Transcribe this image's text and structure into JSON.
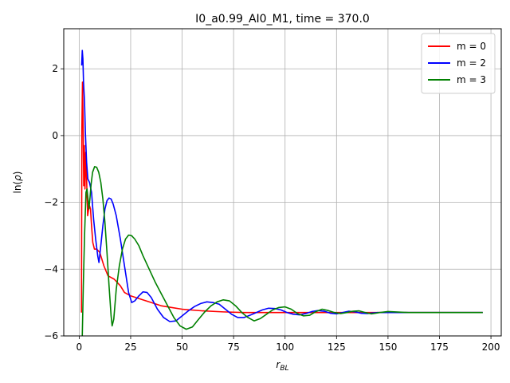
{
  "chart_data": {
    "type": "line",
    "title": "I0_a0.99_AI0_M1, time = 370.0",
    "xlabel": "r_BL",
    "ylabel": "ln(ρ)",
    "xlim": [
      -7.5,
      205
    ],
    "ylim": [
      -6,
      3.2
    ],
    "xticks": [
      0,
      25,
      50,
      75,
      100,
      125,
      150,
      175,
      200
    ],
    "yticks": [
      -6,
      -4,
      -2,
      0,
      2
    ],
    "grid": true,
    "legend_position": "top-right",
    "series": [
      {
        "name": "m = 0",
        "color": "#ff0000",
        "points": [
          [
            1.1,
            -5.3
          ],
          [
            1.3,
            0.2
          ],
          [
            1.6,
            1.6
          ],
          [
            1.9,
            0.4
          ],
          [
            2.2,
            -1.5
          ],
          [
            2.5,
            -0.3
          ],
          [
            2.8,
            -1.6
          ],
          [
            3.2,
            -0.5
          ],
          [
            3.6,
            -1.3
          ],
          [
            4.1,
            -2.4
          ],
          [
            4.6,
            -2.2
          ],
          [
            5.0,
            -2.1
          ],
          [
            5.5,
            -2.2
          ],
          [
            6.0,
            -2.7
          ],
          [
            6.6,
            -3.2
          ],
          [
            7.4,
            -3.4
          ],
          [
            8.5,
            -3.4
          ],
          [
            10,
            -3.5
          ],
          [
            12,
            -3.9
          ],
          [
            14,
            -4.2
          ],
          [
            17,
            -4.3
          ],
          [
            20,
            -4.5
          ],
          [
            22,
            -4.7
          ],
          [
            25,
            -4.8
          ],
          [
            30,
            -4.9
          ],
          [
            35,
            -5.0
          ],
          [
            40,
            -5.1
          ],
          [
            45,
            -5.15
          ],
          [
            50,
            -5.2
          ],
          [
            60,
            -5.25
          ],
          [
            70,
            -5.28
          ],
          [
            80,
            -5.3
          ],
          [
            100,
            -5.3
          ],
          [
            125,
            -5.3
          ],
          [
            150,
            -5.3
          ],
          [
            175,
            -5.3
          ],
          [
            196,
            -5.3
          ]
        ]
      },
      {
        "name": "m = 2",
        "color": "#0000ff",
        "points": [
          [
            1.2,
            2.1
          ],
          [
            1.5,
            2.55
          ],
          [
            1.8,
            2.3
          ],
          [
            2.1,
            1.6
          ],
          [
            2.6,
            1.0
          ],
          [
            3.0,
            0.1
          ],
          [
            3.6,
            -0.8
          ],
          [
            4.2,
            -1.3
          ],
          [
            5.0,
            -1.4
          ],
          [
            6.0,
            -1.7
          ],
          [
            7.0,
            -2.5
          ],
          [
            8.0,
            -3.1
          ],
          [
            9.0,
            -3.6
          ],
          [
            9.6,
            -3.8
          ],
          [
            10.5,
            -3.3
          ],
          [
            11.5,
            -2.7
          ],
          [
            12.5,
            -2.2
          ],
          [
            13.5,
            -1.95
          ],
          [
            14.5,
            -1.87
          ],
          [
            15.5,
            -1.9
          ],
          [
            16.5,
            -2.05
          ],
          [
            18,
            -2.4
          ],
          [
            20,
            -3.1
          ],
          [
            22,
            -3.9
          ],
          [
            24,
            -4.7
          ],
          [
            25.5,
            -5.0
          ],
          [
            27,
            -4.95
          ],
          [
            29,
            -4.8
          ],
          [
            31,
            -4.68
          ],
          [
            33,
            -4.7
          ],
          [
            35,
            -4.85
          ],
          [
            38,
            -5.2
          ],
          [
            41,
            -5.45
          ],
          [
            44,
            -5.57
          ],
          [
            47,
            -5.55
          ],
          [
            50,
            -5.4
          ],
          [
            53,
            -5.25
          ],
          [
            56,
            -5.12
          ],
          [
            59,
            -5.03
          ],
          [
            62,
            -4.98
          ],
          [
            65,
            -5.0
          ],
          [
            68,
            -5.05
          ],
          [
            71,
            -5.2
          ],
          [
            74,
            -5.35
          ],
          [
            77,
            -5.45
          ],
          [
            80,
            -5.45
          ],
          [
            83,
            -5.38
          ],
          [
            86,
            -5.3
          ],
          [
            89,
            -5.22
          ],
          [
            92,
            -5.17
          ],
          [
            95,
            -5.18
          ],
          [
            98,
            -5.22
          ],
          [
            101,
            -5.3
          ],
          [
            104,
            -5.35
          ],
          [
            107,
            -5.37
          ],
          [
            110,
            -5.33
          ],
          [
            113,
            -5.27
          ],
          [
            116,
            -5.24
          ],
          [
            119,
            -5.26
          ],
          [
            122,
            -5.32
          ],
          [
            125,
            -5.34
          ],
          [
            128,
            -5.3
          ],
          [
            131,
            -5.26
          ],
          [
            134,
            -5.28
          ],
          [
            137,
            -5.32
          ],
          [
            140,
            -5.33
          ],
          [
            145,
            -5.3
          ],
          [
            150,
            -5.3
          ],
          [
            175,
            -5.3
          ],
          [
            196,
            -5.3
          ]
        ]
      },
      {
        "name": "m = 3",
        "color": "#008000",
        "points": [
          [
            1.5,
            -6.0
          ],
          [
            2.0,
            -4.5
          ],
          [
            2.6,
            -3.0
          ],
          [
            3.3,
            -1.7
          ],
          [
            3.8,
            -1.6
          ],
          [
            4.3,
            -1.9
          ],
          [
            4.7,
            -2.2
          ],
          [
            5.2,
            -1.9
          ],
          [
            5.8,
            -1.45
          ],
          [
            6.5,
            -1.1
          ],
          [
            7.5,
            -0.93
          ],
          [
            8.5,
            -0.95
          ],
          [
            9.5,
            -1.1
          ],
          [
            10.5,
            -1.4
          ],
          [
            11.5,
            -1.9
          ],
          [
            12.5,
            -2.6
          ],
          [
            13.5,
            -3.5
          ],
          [
            14.5,
            -4.5
          ],
          [
            15.5,
            -5.4
          ],
          [
            16.0,
            -5.7
          ],
          [
            16.8,
            -5.5
          ],
          [
            18,
            -4.6
          ],
          [
            19.5,
            -3.9
          ],
          [
            21,
            -3.4
          ],
          [
            22.5,
            -3.1
          ],
          [
            24,
            -2.98
          ],
          [
            25.5,
            -3.0
          ],
          [
            27,
            -3.1
          ],
          [
            29,
            -3.3
          ],
          [
            31,
            -3.6
          ],
          [
            34,
            -4.0
          ],
          [
            37,
            -4.4
          ],
          [
            40,
            -4.75
          ],
          [
            43,
            -5.1
          ],
          [
            46,
            -5.45
          ],
          [
            49,
            -5.7
          ],
          [
            52,
            -5.8
          ],
          [
            55,
            -5.73
          ],
          [
            58,
            -5.5
          ],
          [
            61,
            -5.28
          ],
          [
            64,
            -5.1
          ],
          [
            67,
            -4.98
          ],
          [
            70,
            -4.92
          ],
          [
            73,
            -4.95
          ],
          [
            76,
            -5.1
          ],
          [
            79,
            -5.3
          ],
          [
            82,
            -5.45
          ],
          [
            85,
            -5.55
          ],
          [
            88,
            -5.48
          ],
          [
            91,
            -5.35
          ],
          [
            94,
            -5.22
          ],
          [
            97,
            -5.15
          ],
          [
            100,
            -5.13
          ],
          [
            103,
            -5.2
          ],
          [
            106,
            -5.33
          ],
          [
            109,
            -5.4
          ],
          [
            112,
            -5.38
          ],
          [
            115,
            -5.27
          ],
          [
            118,
            -5.2
          ],
          [
            121,
            -5.24
          ],
          [
            124,
            -5.3
          ],
          [
            127,
            -5.33
          ],
          [
            130,
            -5.3
          ],
          [
            133,
            -5.26
          ],
          [
            136,
            -5.25
          ],
          [
            139,
            -5.3
          ],
          [
            142,
            -5.34
          ],
          [
            146,
            -5.3
          ],
          [
            150,
            -5.27
          ],
          [
            160,
            -5.3
          ],
          [
            175,
            -5.3
          ],
          [
            196,
            -5.3
          ]
        ]
      }
    ]
  }
}
